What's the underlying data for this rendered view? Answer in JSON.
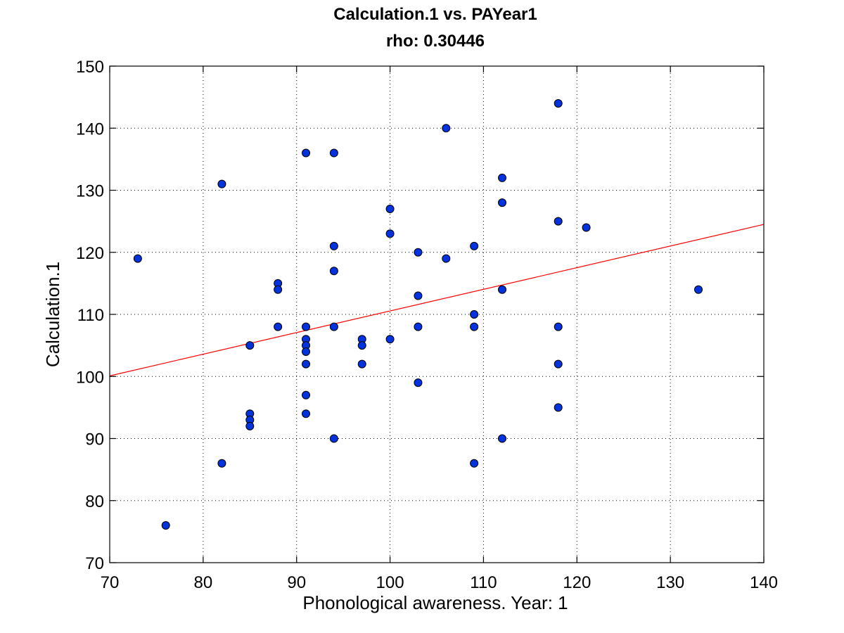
{
  "chart_data": {
    "type": "scatter",
    "title": "Calculation.1 vs. PAYear1",
    "subtitle": "rho: 0.30446",
    "xlabel": "Phonological awareness. Year: 1",
    "ylabel": "Calculation.1",
    "xlim": [
      70,
      140
    ],
    "ylim": [
      70,
      150
    ],
    "xticks": [
      70,
      80,
      90,
      100,
      110,
      120,
      130,
      140
    ],
    "yticks": [
      70,
      80,
      90,
      100,
      110,
      120,
      130,
      140,
      150
    ],
    "grid": true,
    "legend": "none",
    "colors": {
      "marker": "#0033dd",
      "fit_line": "#ff0000"
    },
    "points": [
      {
        "x": 73,
        "y": 119
      },
      {
        "x": 76,
        "y": 76
      },
      {
        "x": 82,
        "y": 131
      },
      {
        "x": 82,
        "y": 86
      },
      {
        "x": 85,
        "y": 105
      },
      {
        "x": 85,
        "y": 94
      },
      {
        "x": 85,
        "y": 93
      },
      {
        "x": 85,
        "y": 92
      },
      {
        "x": 88,
        "y": 115
      },
      {
        "x": 88,
        "y": 114
      },
      {
        "x": 88,
        "y": 108
      },
      {
        "x": 91,
        "y": 136
      },
      {
        "x": 91,
        "y": 108
      },
      {
        "x": 91,
        "y": 106
      },
      {
        "x": 91,
        "y": 105
      },
      {
        "x": 91,
        "y": 104
      },
      {
        "x": 91,
        "y": 102
      },
      {
        "x": 91,
        "y": 97
      },
      {
        "x": 91,
        "y": 94
      },
      {
        "x": 94,
        "y": 136
      },
      {
        "x": 94,
        "y": 121
      },
      {
        "x": 94,
        "y": 117
      },
      {
        "x": 94,
        "y": 108
      },
      {
        "x": 94,
        "y": 90
      },
      {
        "x": 97,
        "y": 106
      },
      {
        "x": 97,
        "y": 105
      },
      {
        "x": 97,
        "y": 102
      },
      {
        "x": 100,
        "y": 127
      },
      {
        "x": 100,
        "y": 123
      },
      {
        "x": 100,
        "y": 106
      },
      {
        "x": 103,
        "y": 120
      },
      {
        "x": 103,
        "y": 113
      },
      {
        "x": 103,
        "y": 108
      },
      {
        "x": 103,
        "y": 99
      },
      {
        "x": 106,
        "y": 140
      },
      {
        "x": 106,
        "y": 119
      },
      {
        "x": 109,
        "y": 121
      },
      {
        "x": 109,
        "y": 110
      },
      {
        "x": 109,
        "y": 108
      },
      {
        "x": 109,
        "y": 86
      },
      {
        "x": 112,
        "y": 132
      },
      {
        "x": 112,
        "y": 128
      },
      {
        "x": 112,
        "y": 114
      },
      {
        "x": 112,
        "y": 90
      },
      {
        "x": 118,
        "y": 144
      },
      {
        "x": 118,
        "y": 125
      },
      {
        "x": 118,
        "y": 108
      },
      {
        "x": 118,
        "y": 102
      },
      {
        "x": 118,
        "y": 95
      },
      {
        "x": 121,
        "y": 124
      },
      {
        "x": 133,
        "y": 114
      }
    ],
    "fit_line": {
      "x": [
        70,
        140
      ],
      "y": [
        100.1,
        124.5
      ]
    }
  }
}
